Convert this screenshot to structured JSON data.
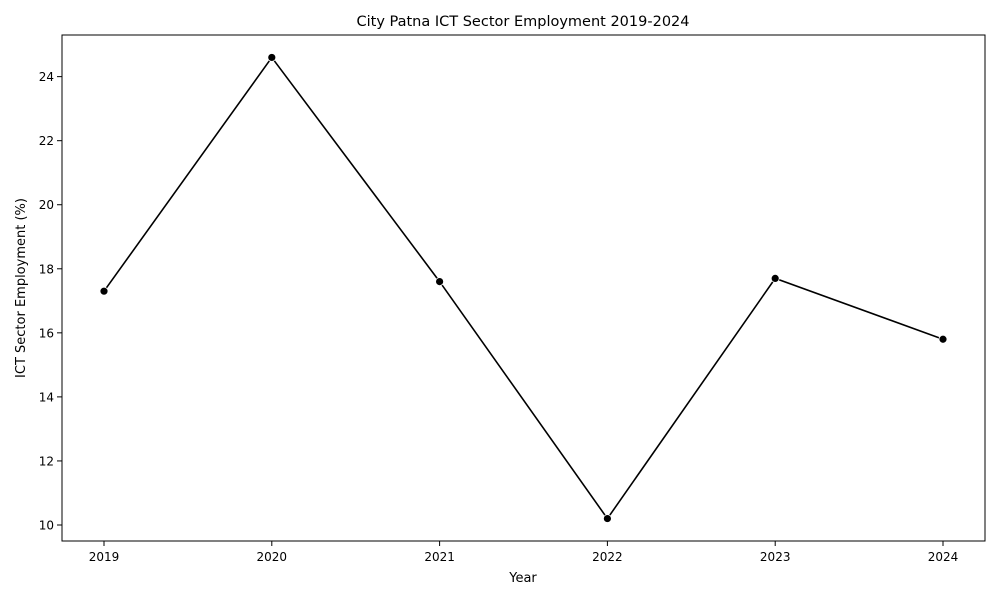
{
  "chart_data": {
    "type": "line",
    "title": "City Patna ICT Sector Employment 2019-2024",
    "xlabel": "Year",
    "ylabel": "ICT Sector Employment (%)",
    "x": [
      "2019",
      "2020",
      "2021",
      "2022",
      "2023",
      "2024"
    ],
    "series": [
      {
        "values": [
          17.3,
          24.6,
          17.6,
          10.2,
          17.7,
          15.8
        ],
        "color": "#000000",
        "marker": "circle"
      }
    ],
    "ylim": [
      9.5,
      25.3
    ],
    "yticks": [
      "10",
      "12",
      "14",
      "16",
      "18",
      "20",
      "22",
      "24"
    ],
    "grid": false,
    "legend": "none"
  }
}
